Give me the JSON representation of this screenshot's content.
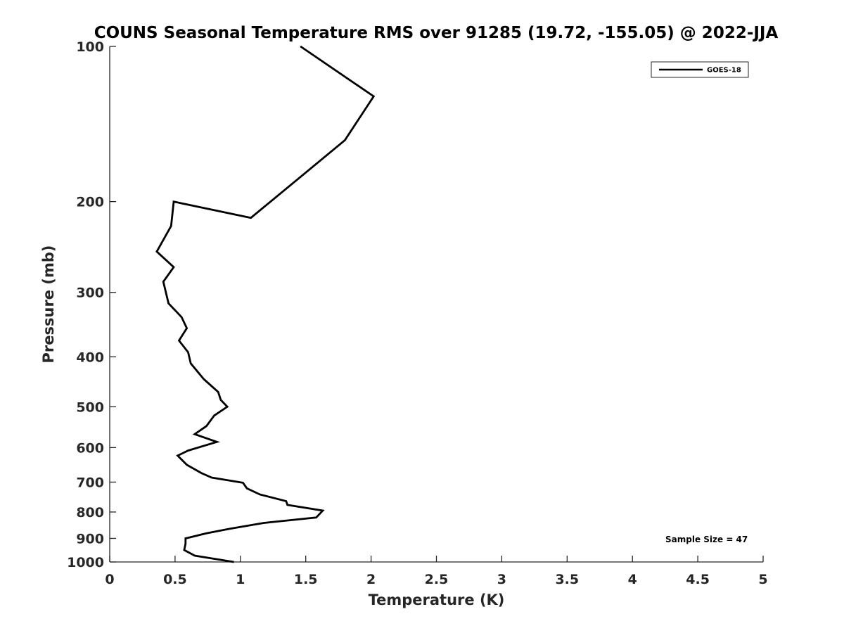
{
  "chart_data": {
    "type": "line",
    "title": "COUNS Seasonal Temperature RMS over 91285 (19.72, -155.05) @ 2022-JJA",
    "xlabel": "Temperature (K)",
    "ylabel": "Pressure (mb)",
    "xlim": [
      0,
      5
    ],
    "ylim": [
      100,
      1000
    ],
    "yscale": "log",
    "y_reversed": true,
    "grid": false,
    "legend_position": "top-right",
    "xticks": [
      0,
      0.5,
      1,
      1.5,
      2,
      2.5,
      3,
      3.5,
      4,
      4.5,
      5
    ],
    "xtick_labels": [
      "0",
      "0.5",
      "1",
      "1.5",
      "2",
      "2.5",
      "3",
      "3.5",
      "4",
      "4.5",
      "5"
    ],
    "yticks": [
      100,
      200,
      300,
      400,
      500,
      600,
      700,
      800,
      900,
      1000
    ],
    "ytick_labels": [
      "100",
      "200",
      "300",
      "400",
      "500",
      "600",
      "700",
      "800",
      "900",
      "1000"
    ],
    "annotation": "Sample Size = 47",
    "series": [
      {
        "name": "GOES-18",
        "color": "#000000",
        "points": [
          [
            1.46,
            100
          ],
          [
            2.02,
            125
          ],
          [
            1.8,
            152
          ],
          [
            1.45,
            180
          ],
          [
            1.08,
            215
          ],
          [
            0.49,
            200
          ],
          [
            0.47,
            223
          ],
          [
            0.36,
            250
          ],
          [
            0.49,
            268
          ],
          [
            0.41,
            286
          ],
          [
            0.45,
            315
          ],
          [
            0.55,
            335
          ],
          [
            0.59,
            352
          ],
          [
            0.53,
            372
          ],
          [
            0.6,
            392
          ],
          [
            0.62,
            412
          ],
          [
            0.72,
            442
          ],
          [
            0.83,
            468
          ],
          [
            0.85,
            485
          ],
          [
            0.9,
            500
          ],
          [
            0.8,
            520
          ],
          [
            0.74,
            545
          ],
          [
            0.65,
            565
          ],
          [
            0.82,
            585
          ],
          [
            0.6,
            608
          ],
          [
            0.52,
            622
          ],
          [
            0.59,
            648
          ],
          [
            0.7,
            672
          ],
          [
            0.78,
            686
          ],
          [
            1.02,
            702
          ],
          [
            1.05,
            720
          ],
          [
            1.15,
            740
          ],
          [
            1.35,
            762
          ],
          [
            1.36,
            775
          ],
          [
            1.63,
            795
          ],
          [
            1.58,
            820
          ],
          [
            1.18,
            840
          ],
          [
            0.92,
            862
          ],
          [
            0.74,
            880
          ],
          [
            0.58,
            900
          ],
          [
            0.58,
            922
          ],
          [
            0.57,
            948
          ],
          [
            0.65,
            972
          ],
          [
            0.95,
            1000
          ]
        ]
      }
    ]
  }
}
